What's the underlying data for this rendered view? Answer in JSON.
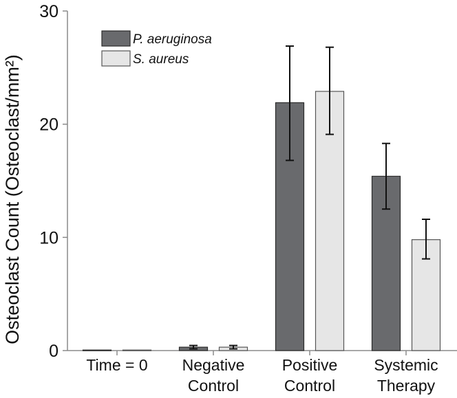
{
  "chart_data": {
    "type": "bar",
    "title": "",
    "xlabel": "",
    "ylabel": "Osteoclast Count (Osteoclast/mm²)",
    "ylim": [
      0,
      30
    ],
    "yticks": [
      0,
      10,
      20,
      30
    ],
    "grid": false,
    "legend_position": "top-left",
    "categories": [
      [
        "Time = 0"
      ],
      [
        "Negative",
        "Control"
      ],
      [
        "Positive",
        "Control"
      ],
      [
        "Systemic",
        "Therapy"
      ]
    ],
    "series": [
      {
        "name": "P. aeruginosa",
        "color": "#696a6d",
        "values": [
          0.05,
          0.3,
          21.9,
          15.4
        ],
        "error_low": [
          0.05,
          0.15,
          16.8,
          12.5
        ],
        "error_high": [
          0.05,
          0.45,
          26.9,
          18.3
        ]
      },
      {
        "name": "S. aureus",
        "color": "#e6e6e6",
        "values": [
          0.05,
          0.3,
          22.9,
          9.8
        ],
        "error_low": [
          0.05,
          0.15,
          19.1,
          8.1
        ],
        "error_high": [
          0.05,
          0.45,
          26.8,
          11.6
        ]
      }
    ]
  }
}
